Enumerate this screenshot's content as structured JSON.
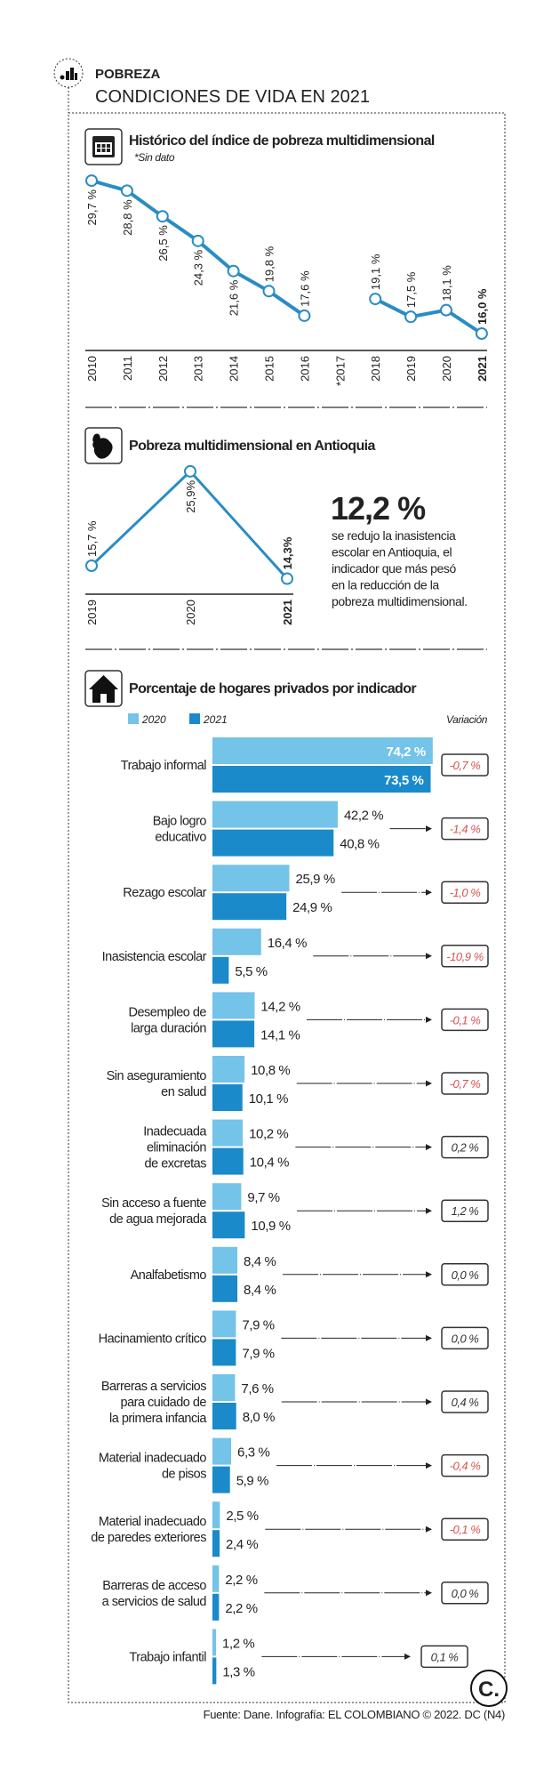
{
  "header": {
    "kicker": "POBREZA",
    "title": "CONDICIONES DE VIDA EN 2021",
    "logo_icon": "bar-chart-icon"
  },
  "colors": {
    "line": "#2a8cc4",
    "bar_2020": "#74c3e8",
    "bar_2021": "#1a8acb",
    "negative": "#d9534f",
    "neutral": "#333333",
    "highlight": "#1f8bc9"
  },
  "chart_data": [
    {
      "type": "line",
      "title": "Histórico del índice de pobreza multidimensional",
      "note": "*Sin dato",
      "icon": "calendar-icon",
      "categories": [
        "2010",
        "2011",
        "2012",
        "2013",
        "2014",
        "2015",
        "2016",
        "*2017",
        "2018",
        "2019",
        "2020",
        "2021"
      ],
      "values": [
        29.7,
        28.8,
        26.5,
        24.3,
        21.6,
        19.8,
        17.6,
        null,
        19.1,
        17.5,
        18.1,
        16.0
      ],
      "labels": [
        "29,7 %",
        "28,8 %",
        "26,5 %",
        "24,3 %",
        "21,6 %",
        "19,8 %",
        "17,6 %",
        "",
        "19,1 %",
        "17,5 %",
        "18,1 %",
        "16,0 %"
      ]
    },
    {
      "type": "line",
      "title": "Pobreza multidimensional en Antioquia",
      "icon": "antioquia-map-icon",
      "categories": [
        "2019",
        "2020",
        "2021"
      ],
      "values": [
        15.7,
        25.9,
        14.3
      ],
      "labels": [
        "15,7 %",
        "25,9%",
        "14,3%"
      ]
    },
    {
      "type": "bar",
      "title": "Porcentaje de hogares privados por indicador",
      "icon": "house-icon",
      "legend": [
        "2020",
        "2021"
      ],
      "variation_header": "Variación",
      "categories": [
        "Trabajo informal",
        "Bajo logro educativo",
        "Rezago escolar",
        "Inasistencia escolar",
        "Desempleo de larga duración",
        "Sin aseguramiento en salud",
        "Inadecuada eliminación de excretas",
        "Sin acceso a fuente de agua mejorada",
        "Analfabetismo",
        "Hacinamiento crítico",
        "Barreras a servicios para cuidado de la primera infancia",
        "Material inadecuado de pisos",
        "Material inadecuado de paredes exteriores",
        "Barreras de acceso a servicios de salud",
        "Trabajo infantil"
      ],
      "category_lines": [
        [
          "Trabajo informal"
        ],
        [
          "Bajo logro",
          "educativo"
        ],
        [
          "Rezago escolar"
        ],
        [
          "Inasistencia escolar"
        ],
        [
          "Desempleo de",
          "larga duración"
        ],
        [
          "Sin aseguramiento",
          "en salud"
        ],
        [
          "Inadecuada",
          "eliminación",
          "de excretas"
        ],
        [
          "Sin acceso a fuente",
          "de agua mejorada"
        ],
        [
          "Analfabetismo"
        ],
        [
          "Hacinamiento crítico"
        ],
        [
          "Barreras a servicios",
          "para cuidado de",
          "la primera infancia"
        ],
        [
          "Material inadecuado",
          "de pisos"
        ],
        [
          "Material inadecuado",
          "de paredes exteriores"
        ],
        [
          "Barreras de acceso",
          "a servicios de salud"
        ],
        [
          "Trabajo infantil"
        ]
      ],
      "series": [
        {
          "name": "2020",
          "values": [
            74.2,
            42.2,
            25.9,
            16.4,
            14.2,
            10.8,
            10.2,
            9.7,
            8.4,
            7.9,
            7.6,
            6.3,
            2.5,
            2.2,
            1.2
          ],
          "labels": [
            "74,2 %",
            "42,2 %",
            "25,9 %",
            "16,4 %",
            "14,2 %",
            "10,8 %",
            "10,2 %",
            "9,7 %",
            "8,4 %",
            "7,9 %",
            "7,6 %",
            "6,3 %",
            "2,5 %",
            "2,2 %",
            "1,2 %"
          ]
        },
        {
          "name": "2021",
          "values": [
            73.5,
            40.8,
            24.9,
            5.5,
            14.1,
            10.1,
            10.4,
            10.9,
            8.4,
            7.9,
            8.0,
            5.9,
            2.4,
            2.2,
            1.3
          ],
          "labels": [
            "73,5 %",
            "40,8 %",
            "24,9 %",
            "5,5 %",
            "14,1 %",
            "10,1 %",
            "10,4 %",
            "10,9 %",
            "8,4 %",
            "7,9 %",
            "8,0 %",
            "5,9 %",
            "2,4 %",
            "2,2 %",
            "1,3 %"
          ]
        }
      ],
      "variation": [
        -0.7,
        -1.4,
        -1.0,
        -10.9,
        -0.1,
        -0.7,
        0.2,
        1.2,
        0.0,
        0.0,
        0.4,
        -0.4,
        -0.1,
        0.0,
        0.1
      ],
      "variation_labels": [
        "-0,7 %",
        "-1,4 %",
        "-1,0 %",
        "-10,9 %",
        "-0,1 %",
        "-0,7 %",
        "0,2 %",
        "1,2 %",
        "0,0 %",
        "0,0 %",
        "0,4 %",
        "-0,4 %",
        "-0,1 %",
        "0,0 %",
        "0,1 %"
      ]
    }
  ],
  "highlight": {
    "value": "12,2 %",
    "text_lines": [
      "se redujo la inasistencia",
      "escolar en Antioquia, el",
      "indicador que más pesó",
      "en la reducción de la",
      "pobreza multidimensional."
    ]
  },
  "footer": {
    "source": "Fuente: Dane. Infografía: EL COLOMBIANO © 2022. DC (N4)",
    "brand_logo": "C."
  }
}
